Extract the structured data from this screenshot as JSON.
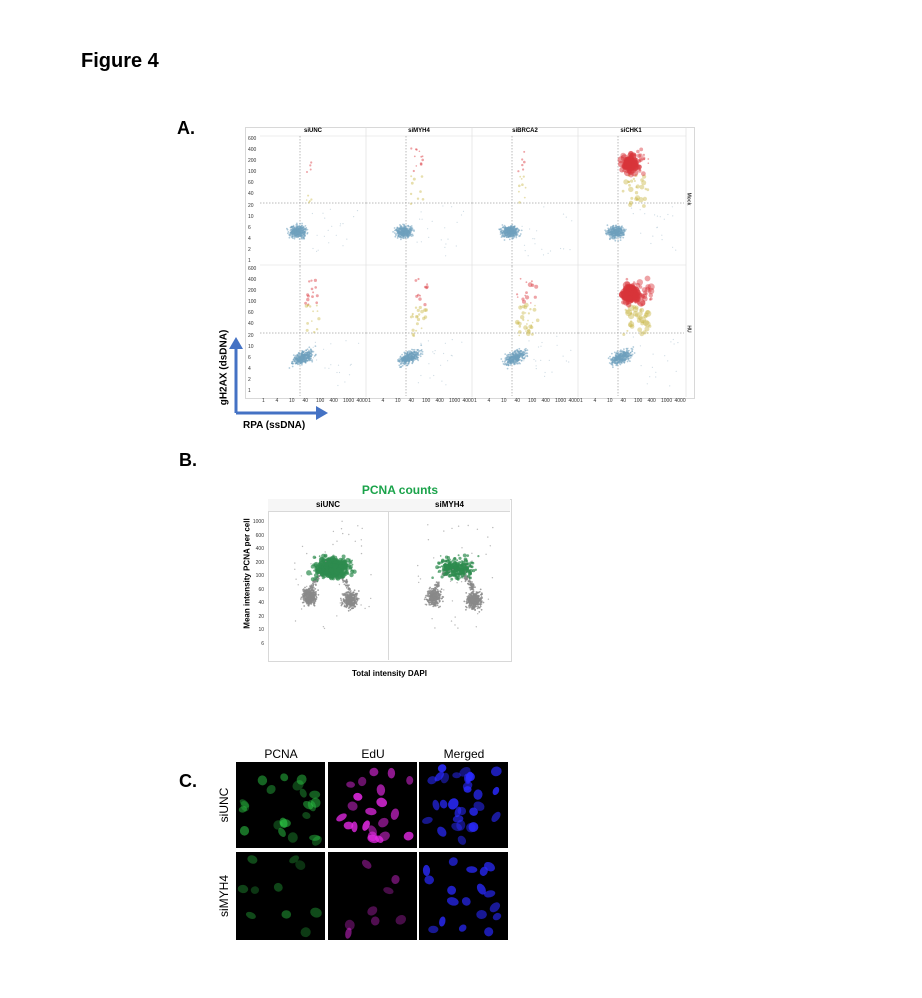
{
  "figure_title": "Figure 4",
  "panel_a": {
    "label": "A.",
    "columns": [
      "siUNC",
      "siMYH4",
      "siBRCA2",
      "siCHK1"
    ],
    "rows": [
      "Mock",
      "HU"
    ],
    "y_ticks": [
      "600",
      "400",
      "200",
      "100",
      "60",
      "40",
      "20",
      "10",
      "6",
      "4",
      "2",
      "1"
    ],
    "x_ticks": [
      "1",
      "4",
      "10",
      "40",
      "100",
      "400",
      "1000",
      "4000"
    ],
    "y_axis_label": "gH2AX (dsDNA)",
    "x_axis_label": "RPA (ssDNA)"
  },
  "panel_b": {
    "label": "B.",
    "title": "PCNA counts",
    "columns": [
      "siUNC",
      "siMYH4"
    ],
    "y_ticks": [
      "1000",
      "600",
      "400",
      "200",
      "100",
      "60",
      "40",
      "20",
      "10",
      "6"
    ],
    "y_axis_label": "Mean intensity PCNA per cell",
    "x_axis_label": "Total intensity DAPI"
  },
  "panel_c": {
    "label": "C.",
    "columns": [
      "PCNA",
      "EdU",
      "Merged"
    ],
    "rows": [
      "siUNC",
      "siMYH4"
    ]
  },
  "colors": {
    "axis_arrow": "#4472c4",
    "pcna_title": "#1aa34a",
    "pcna_green": "#2e8b4e",
    "gray_points": "#8a8a8a",
    "low_blue": "#6fa0be",
    "mid_yellow": "#c9b84a",
    "high_red": "#d9343a",
    "pcna_stain": "#2fd64a",
    "edu_stain": "#e629e6",
    "dapi_stain": "#2a2aff"
  }
}
